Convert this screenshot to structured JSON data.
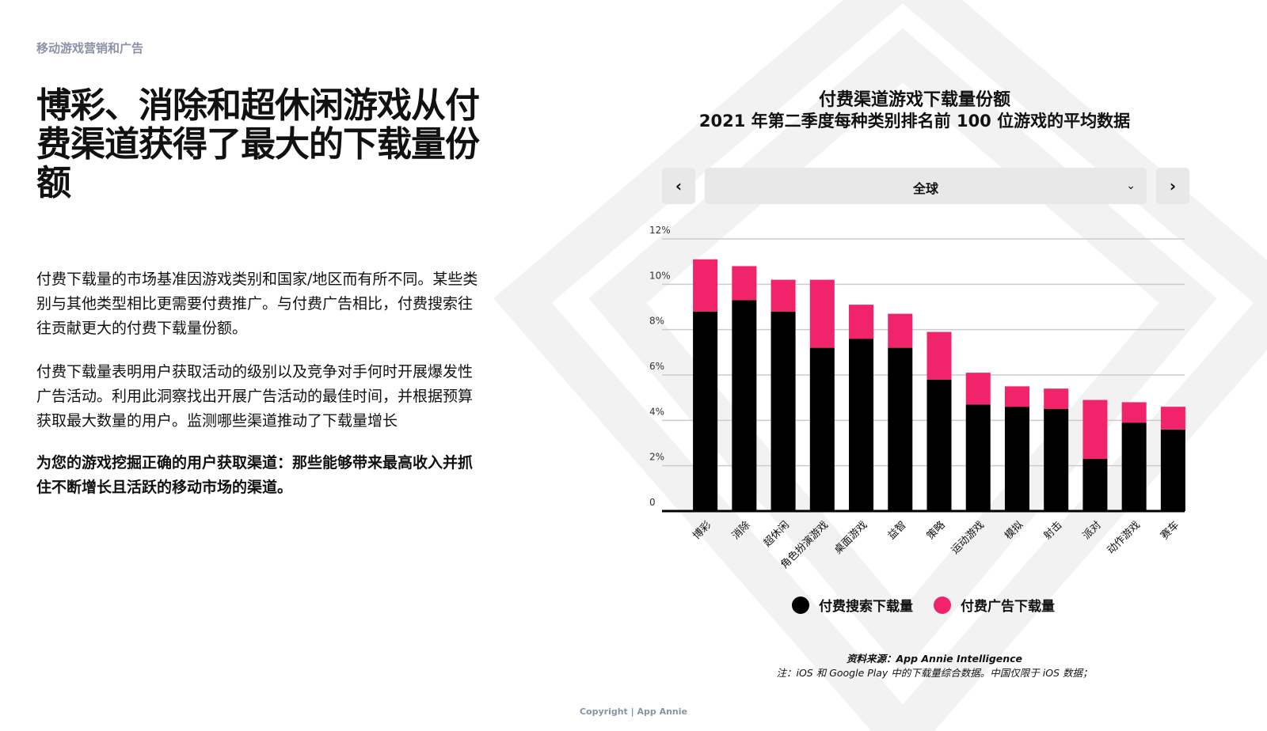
{
  "page": {
    "section_label": "移动游戏营销和广告",
    "headline": "博彩、消除和超休闲游戏从付费渠道获得了最大的下载量份额",
    "paragraphs": [
      "付费下载量的市场基准因游戏类别和国家/地区而有所不同。某些类别与其他类型相比更需要付费推广。与付费广告相比，付费搜索往往贡献更大的付费下载量份额。",
      "付费下载量表明用户获取活动的级别以及竞争对手何时开展爆发性广告活动。利用此洞察找出开展广告活动的最佳时间，并根据预算获取最大数量的用户。监测哪些渠道推动了下载量增长",
      "为您的游戏挖掘正确的用户获取渠道：那些能够带来最高收入并抓住不断增长且活跃的移动市场的渠道。"
    ],
    "copyright": "Copyright | App Annie"
  },
  "controls": {
    "prev_icon": "‹",
    "next_icon": "›",
    "region": "全球",
    "dropdown_icon": "⌄"
  },
  "colors": {
    "search": "#000000",
    "ads": "#f0236b",
    "grid": "#cccccc",
    "nav_bg": "#e8e8e8"
  },
  "chart_data": {
    "type": "bar",
    "stacked": true,
    "title": "付费渠道游戏下载量份额",
    "subtitle": "2021 年第二季度每种类别排名前 100 位游戏的平均数据",
    "categories": [
      "博彩",
      "消除",
      "超休闲",
      "角色扮演游戏",
      "桌面游戏",
      "益智",
      "策略",
      "运动游戏",
      "模拟",
      "射击",
      "派对",
      "动作游戏",
      "赛车"
    ],
    "series": [
      {
        "name": "付费搜索下载量",
        "color": "#000000",
        "values": [
          8.8,
          9.3,
          8.8,
          7.2,
          7.6,
          7.2,
          5.8,
          4.7,
          4.6,
          4.5,
          2.3,
          3.9,
          3.6
        ]
      },
      {
        "name": "付费广告下载量",
        "color": "#f0236b",
        "values": [
          2.3,
          1.5,
          1.4,
          3.0,
          1.5,
          1.5,
          2.1,
          1.4,
          0.9,
          0.9,
          2.6,
          0.9,
          1.0
        ]
      }
    ],
    "y_ticks": [
      "0",
      "2%",
      "4%",
      "6%",
      "8%",
      "10%",
      "12%"
    ],
    "ylim": [
      0,
      12
    ],
    "legend": [
      "付费搜索下载量",
      "付费广告下载量"
    ],
    "source": "资料来源：App Annie Intelligence",
    "note": "注：iOS 和 Google Play 中的下载量综合数据。中国仅限于 iOS 数据；"
  }
}
